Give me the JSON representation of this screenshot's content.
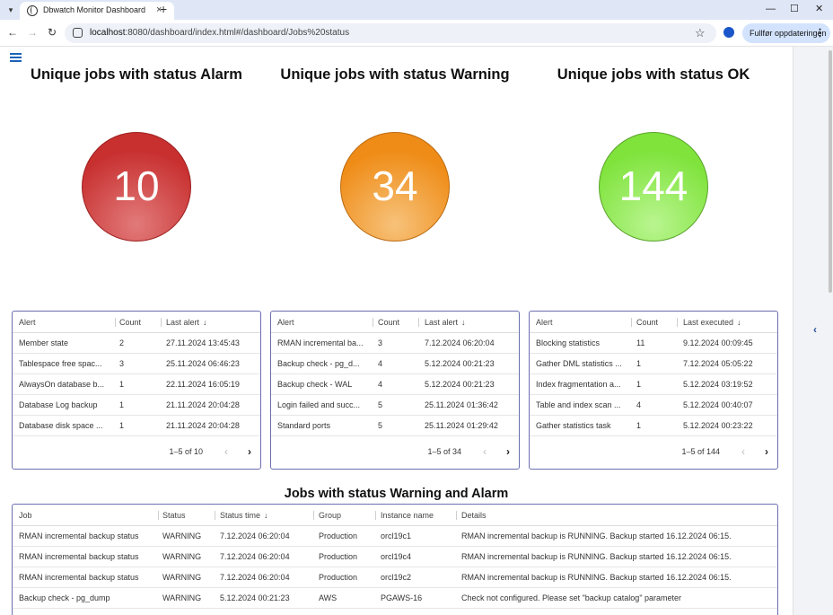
{
  "browser": {
    "tab_title": "Dbwatch Monitor Dashboard",
    "url_host": "localhost",
    "url_rest": ":8080/dashboard/index.html#/dashboard/Jobs%20status",
    "update_button": "Fullfør oppdateringen"
  },
  "summary": [
    {
      "title": "Unique jobs with status Alarm",
      "count": "10",
      "color": "#c83030"
    },
    {
      "title": "Unique jobs with status Warning",
      "count": "34",
      "color": "#ef8c17"
    },
    {
      "title": "Unique jobs with status OK",
      "count": "144",
      "color": "#7fe33c"
    }
  ],
  "grids": [
    {
      "headers": [
        "Alert",
        "Count",
        "Last alert"
      ],
      "rows": [
        [
          "Member state",
          "2",
          "27.11.2024 13:45:43"
        ],
        [
          "Tablespace free spac...",
          "3",
          "25.11.2024 06:46:23"
        ],
        [
          "AlwaysOn database b...",
          "1",
          "22.11.2024 16:05:19"
        ],
        [
          "Database Log backup",
          "1",
          "21.11.2024 20:04:28"
        ],
        [
          "Database disk space ...",
          "1",
          "21.11.2024 20:04:28"
        ]
      ],
      "pager": "1–5 of 10"
    },
    {
      "headers": [
        "Alert",
        "Count",
        "Last alert"
      ],
      "rows": [
        [
          "RMAN incremental ba...",
          "3",
          "7.12.2024 06:20:04"
        ],
        [
          "Backup check - pg_d...",
          "4",
          "5.12.2024 00:21:23"
        ],
        [
          "Backup check - WAL",
          "4",
          "5.12.2024 00:21:23"
        ],
        [
          "Login failed and succ...",
          "5",
          "25.11.2024 01:36:42"
        ],
        [
          "Standard ports",
          "5",
          "25.11.2024 01:29:42"
        ]
      ],
      "pager": "1–5 of 34"
    },
    {
      "headers": [
        "Alert",
        "Count",
        "Last executed"
      ],
      "rows": [
        [
          "Blocking statistics",
          "11",
          "9.12.2024 00:09:45"
        ],
        [
          "Gather DML statistics ...",
          "1",
          "7.12.2024 05:05:22"
        ],
        [
          "Index fragmentation a...",
          "1",
          "5.12.2024 03:19:52"
        ],
        [
          "Table and index scan ...",
          "4",
          "5.12.2024 00:40:07"
        ],
        [
          "Gather statistics task",
          "1",
          "5.12.2024 00:23:22"
        ]
      ],
      "pager": "1–5 of 144"
    }
  ],
  "jobs_section": {
    "title": "Jobs with status Warning and Alarm",
    "headers": [
      "Job",
      "Status",
      "Status time",
      "Group",
      "Instance name",
      "Details"
    ],
    "rows": [
      [
        "RMAN incremental backup status",
        "WARNING",
        "7.12.2024 06:20:04",
        "Production",
        "orcl19c1",
        "RMAN incremental backup is RUNNING. Backup started 16.12.2024 06:15."
      ],
      [
        "RMAN incremental backup status",
        "WARNING",
        "7.12.2024 06:20:04",
        "Production",
        "orcl19c4",
        "RMAN incremental backup is RUNNING. Backup started 16.12.2024 06:15."
      ],
      [
        "RMAN incremental backup status",
        "WARNING",
        "7.12.2024 06:20:04",
        "Production",
        "orcl19c2",
        "RMAN incremental backup is RUNNING. Backup started 16.12.2024 06:15."
      ],
      [
        "Backup check - pg_dump",
        "WARNING",
        "5.12.2024 00:21:23",
        "AWS",
        "PGAWS-16",
        "Check not configured. Please set \"backup catalog\" parameter"
      ]
    ]
  }
}
